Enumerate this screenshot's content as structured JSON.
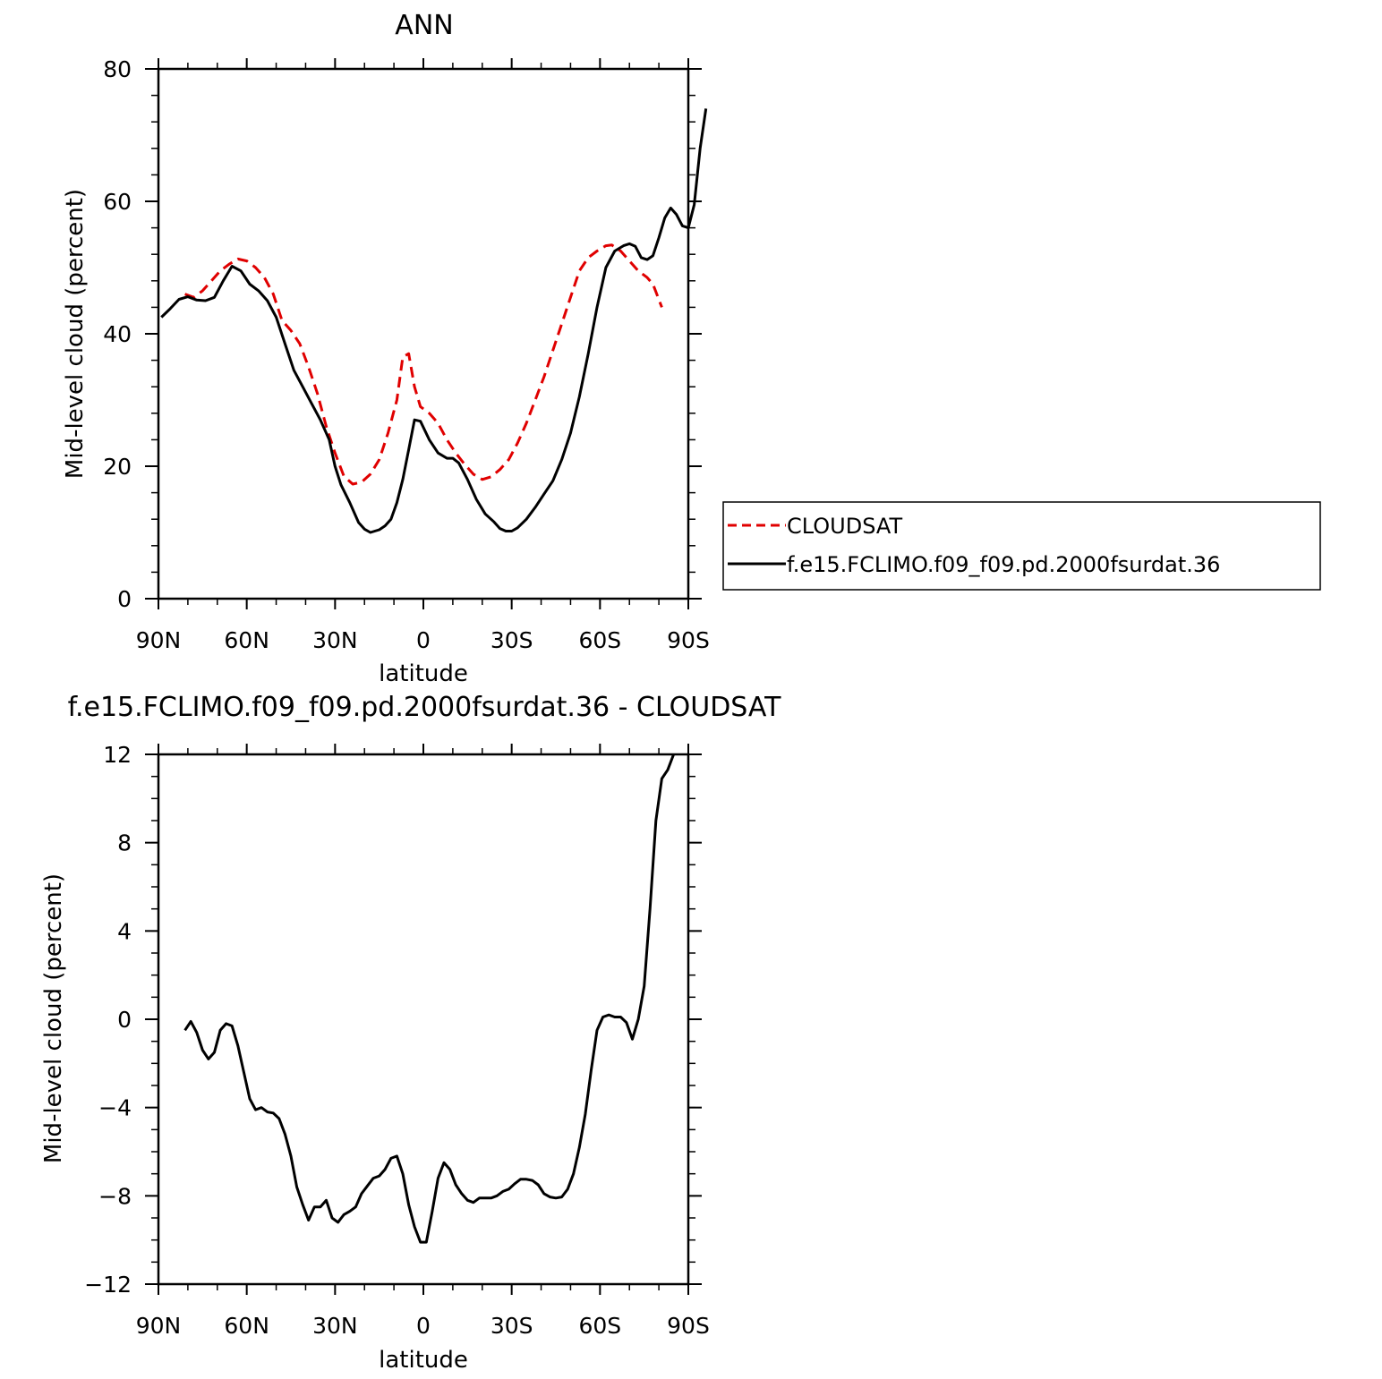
{
  "chart_data": [
    {
      "type": "line",
      "title": "ANN",
      "xlabel": "latitude",
      "ylabel": "Mid-level cloud (percent)",
      "xlim": [
        90,
        -90
      ],
      "ylim": [
        0,
        80
      ],
      "x_ticks": [
        {
          "value": 90,
          "label": "90N"
        },
        {
          "value": 60,
          "label": "60N"
        },
        {
          "value": 30,
          "label": "30N"
        },
        {
          "value": 0,
          "label": "0"
        },
        {
          "value": -30,
          "label": "30S"
        },
        {
          "value": -60,
          "label": "60S"
        },
        {
          "value": -90,
          "label": "90S"
        }
      ],
      "y_ticks": [
        {
          "value": 0,
          "label": "0"
        },
        {
          "value": 20,
          "label": "20"
        },
        {
          "value": 40,
          "label": "40"
        },
        {
          "value": 60,
          "label": "60"
        },
        {
          "value": 80,
          "label": "80"
        }
      ],
      "legend_position": "right",
      "series": [
        {
          "name": "CLOUDSAT",
          "color": "#e00000",
          "dash": "dashed",
          "points": [
            [
              81,
              46
            ],
            [
              78,
              45.5
            ],
            [
              75,
              46.5
            ],
            [
              72,
              48
            ],
            [
              69,
              49.5
            ],
            [
              66,
              50.5
            ],
            [
              63,
              51.3
            ],
            [
              60,
              51
            ],
            [
              57,
              50
            ],
            [
              54,
              48.5
            ],
            [
              51,
              46
            ],
            [
              48,
              42
            ],
            [
              45,
              40.5
            ],
            [
              42,
              38.5
            ],
            [
              39,
              35
            ],
            [
              36,
              31
            ],
            [
              33,
              26
            ],
            [
              30,
              22
            ],
            [
              27,
              18.5
            ],
            [
              24,
              17.3
            ],
            [
              21,
              17.6
            ],
            [
              18,
              18.8
            ],
            [
              15,
              21
            ],
            [
              12,
              25
            ],
            [
              9,
              30
            ],
            [
              7,
              36.5
            ],
            [
              5,
              37
            ],
            [
              3,
              32
            ],
            [
              1,
              29
            ],
            [
              -2,
              28
            ],
            [
              -5,
              26.5
            ],
            [
              -8,
              24
            ],
            [
              -11,
              22
            ],
            [
              -14,
              20.3
            ],
            [
              -17,
              18.8
            ],
            [
              -20,
              18
            ],
            [
              -23,
              18.4
            ],
            [
              -26,
              19.5
            ],
            [
              -29,
              21
            ],
            [
              -32,
              23.5
            ],
            [
              -35,
              26.5
            ],
            [
              -38,
              30
            ],
            [
              -41,
              33.5
            ],
            [
              -44,
              37.5
            ],
            [
              -47,
              41.5
            ],
            [
              -50,
              45.5
            ],
            [
              -53,
              49.5
            ],
            [
              -56,
              51.5
            ],
            [
              -59,
              52.5
            ],
            [
              -62,
              53.3
            ],
            [
              -64,
              53.4
            ],
            [
              -67,
              52.5
            ],
            [
              -70,
              51
            ],
            [
              -73,
              49.5
            ],
            [
              -76,
              48.5
            ],
            [
              -78,
              47.5
            ],
            [
              -81,
              44
            ]
          ]
        },
        {
          "name": "f.e15.FCLIMO.f09_f09.pd.2000fsurdat.36",
          "color": "#000000",
          "dash": "solid",
          "points": [
            [
              89,
              42.5
            ],
            [
              86,
              43.8
            ],
            [
              83,
              45.2
            ],
            [
              80,
              45.6
            ],
            [
              77,
              45.1
            ],
            [
              74,
              45
            ],
            [
              71,
              45.5
            ],
            [
              68,
              48
            ],
            [
              65,
              50.2
            ],
            [
              62,
              49.5
            ],
            [
              59,
              47.5
            ],
            [
              56,
              46.5
            ],
            [
              53,
              45
            ],
            [
              50,
              42.5
            ],
            [
              47,
              38.5
            ],
            [
              44,
              34.5
            ],
            [
              41,
              32
            ],
            [
              38,
              29.5
            ],
            [
              35,
              27
            ],
            [
              32,
              24
            ],
            [
              30,
              20
            ],
            [
              28,
              17.2
            ],
            [
              25,
              14.5
            ],
            [
              22,
              11.5
            ],
            [
              20,
              10.5
            ],
            [
              18,
              10
            ],
            [
              15,
              10.4
            ],
            [
              13,
              11
            ],
            [
              11,
              12
            ],
            [
              9,
              14.5
            ],
            [
              7,
              18
            ],
            [
              5,
              22.5
            ],
            [
              3,
              27
            ],
            [
              1,
              26.8
            ],
            [
              -2,
              24
            ],
            [
              -5,
              22
            ],
            [
              -8,
              21.2
            ],
            [
              -10,
              21.2
            ],
            [
              -12,
              20.5
            ],
            [
              -15,
              18
            ],
            [
              -18,
              15
            ],
            [
              -21,
              12.8
            ],
            [
              -24,
              11.6
            ],
            [
              -26,
              10.6
            ],
            [
              -28,
              10.2
            ],
            [
              -30,
              10.2
            ],
            [
              -32,
              10.7
            ],
            [
              -35,
              12
            ],
            [
              -38,
              13.8
            ],
            [
              -41,
              15.8
            ],
            [
              -44,
              17.8
            ],
            [
              -47,
              21
            ],
            [
              -50,
              25
            ],
            [
              -53,
              30.5
            ],
            [
              -56,
              37
            ],
            [
              -59,
              44
            ],
            [
              -62,
              50
            ],
            [
              -65,
              52.5
            ],
            [
              -68,
              53.3
            ],
            [
              -70,
              53.6
            ],
            [
              -72,
              53.2
            ],
            [
              -74,
              51.5
            ],
            [
              -76,
              51.2
            ],
            [
              -78,
              51.8
            ],
            [
              -80,
              54.5
            ],
            [
              -82,
              57.5
            ],
            [
              -84,
              59
            ],
            [
              -86,
              58
            ],
            [
              -88,
              56.3
            ],
            [
              -90,
              56
            ],
            [
              -92,
              59.5
            ],
            [
              -94,
              68
            ],
            [
              -96,
              74
            ]
          ]
        }
      ]
    },
    {
      "type": "line",
      "title": "f.e15.FCLIMO.f09_f09.pd.2000fsurdat.36 - CLOUDSAT",
      "xlabel": "latitude",
      "ylabel": "Mid-level cloud (percent)",
      "xlim": [
        90,
        -90
      ],
      "ylim": [
        -12,
        12
      ],
      "x_ticks": [
        {
          "value": 90,
          "label": "90N"
        },
        {
          "value": 60,
          "label": "60N"
        },
        {
          "value": 30,
          "label": "30N"
        },
        {
          "value": 0,
          "label": "0"
        },
        {
          "value": -30,
          "label": "30S"
        },
        {
          "value": -60,
          "label": "60S"
        },
        {
          "value": -90,
          "label": "90S"
        }
      ],
      "y_ticks": [
        {
          "value": -12,
          "label": "−12"
        },
        {
          "value": -8,
          "label": "−8"
        },
        {
          "value": -4,
          "label": "−4"
        },
        {
          "value": 0,
          "label": "0"
        },
        {
          "value": 4,
          "label": "4"
        },
        {
          "value": 8,
          "label": "8"
        },
        {
          "value": 12,
          "label": "12"
        }
      ],
      "series": [
        {
          "name": "",
          "color": "#000000",
          "dash": "solid",
          "points": [
            [
              81,
              -0.5
            ],
            [
              79,
              -0.1
            ],
            [
              77,
              -0.6
            ],
            [
              75,
              -1.4
            ],
            [
              73,
              -1.8
            ],
            [
              71,
              -1.5
            ],
            [
              69,
              -0.5
            ],
            [
              67,
              -0.2
            ],
            [
              65,
              -0.3
            ],
            [
              63,
              -1.2
            ],
            [
              61,
              -2.4
            ],
            [
              59,
              -3.6
            ],
            [
              57,
              -4.1
            ],
            [
              55,
              -4.0
            ],
            [
              53,
              -4.2
            ],
            [
              51,
              -4.25
            ],
            [
              49,
              -4.5
            ],
            [
              47,
              -5.2
            ],
            [
              45,
              -6.2
            ],
            [
              43,
              -7.6
            ],
            [
              41,
              -8.4
            ],
            [
              39,
              -9.1
            ],
            [
              37,
              -8.5
            ],
            [
              35,
              -8.5
            ],
            [
              33,
              -8.2
            ],
            [
              31,
              -9.0
            ],
            [
              29,
              -9.2
            ],
            [
              27,
              -8.85
            ],
            [
              25,
              -8.7
            ],
            [
              23,
              -8.5
            ],
            [
              21,
              -7.9
            ],
            [
              19,
              -7.55
            ],
            [
              17,
              -7.2
            ],
            [
              15,
              -7.1
            ],
            [
              13,
              -6.8
            ],
            [
              11,
              -6.3
            ],
            [
              9,
              -6.2
            ],
            [
              7,
              -7.0
            ],
            [
              5,
              -8.4
            ],
            [
              3,
              -9.4
            ],
            [
              1,
              -10.1
            ],
            [
              -1,
              -10.1
            ],
            [
              -3,
              -8.7
            ],
            [
              -5,
              -7.2
            ],
            [
              -7,
              -6.5
            ],
            [
              -9,
              -6.8
            ],
            [
              -11,
              -7.5
            ],
            [
              -13,
              -7.9
            ],
            [
              -15,
              -8.2
            ],
            [
              -17,
              -8.3
            ],
            [
              -19,
              -8.1
            ],
            [
              -21,
              -8.1
            ],
            [
              -23,
              -8.1
            ],
            [
              -25,
              -8.0
            ],
            [
              -27,
              -7.8
            ],
            [
              -29,
              -7.7
            ],
            [
              -31,
              -7.45
            ],
            [
              -33,
              -7.25
            ],
            [
              -35,
              -7.25
            ],
            [
              -37,
              -7.3
            ],
            [
              -39,
              -7.5
            ],
            [
              -41,
              -7.9
            ],
            [
              -43,
              -8.05
            ],
            [
              -45,
              -8.1
            ],
            [
              -47,
              -8.05
            ],
            [
              -49,
              -7.7
            ],
            [
              -51,
              -7.0
            ],
            [
              -53,
              -5.8
            ],
            [
              -55,
              -4.3
            ],
            [
              -57,
              -2.3
            ],
            [
              -59,
              -0.5
            ],
            [
              -61,
              0.1
            ],
            [
              -63,
              0.2
            ],
            [
              -65,
              0.1
            ],
            [
              -67,
              0.1
            ],
            [
              -69,
              -0.15
            ],
            [
              -71,
              -0.9
            ],
            [
              -73,
              0
            ],
            [
              -75,
              1.5
            ],
            [
              -77,
              5
            ],
            [
              -79,
              9
            ],
            [
              -81,
              10.9
            ],
            [
              -83,
              11.3
            ],
            [
              -85,
              12
            ]
          ]
        }
      ]
    }
  ]
}
